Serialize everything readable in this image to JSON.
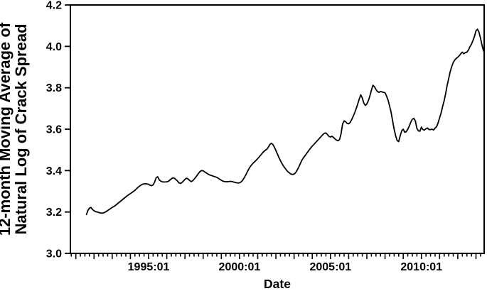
{
  "figure": {
    "background_color": "#ffffff",
    "axis_color": "#000000",
    "line_color": "#000000",
    "text_color": "#000000"
  },
  "chart_data": {
    "type": "line",
    "title": "",
    "xlabel": "Date",
    "ylabel": "12-month Moving Average of Natural Log of Crack Spread",
    "ylabel_lines": [
      "12-month Moving Average of",
      "Natural Log of Crack Spread"
    ],
    "grid": "off",
    "legend": "none",
    "x_axis": {
      "range_decimal_years": [
        1990.7,
        2013.45
      ],
      "major_tick_every_years": 1,
      "minor_tick_every_years": 0.25,
      "tick_labels": [
        {
          "year": 1995.0,
          "label": "1995:01"
        },
        {
          "year": 2000.0,
          "label": "2000:01"
        },
        {
          "year": 2005.0,
          "label": "2005:01"
        },
        {
          "year": 2010.0,
          "label": "2010:01"
        }
      ]
    },
    "y_axis": {
      "range": [
        3.0,
        4.2
      ],
      "ticks": [
        3.0,
        3.2,
        3.4,
        3.6,
        3.8,
        4.0,
        4.2
      ],
      "tick_labels": [
        "3.0",
        "3.2",
        "3.4",
        "3.6",
        "3.8",
        "4.0",
        "4.2"
      ]
    },
    "series": [
      {
        "name": "12-month moving average of natural log of crack spread",
        "start": "1991-08",
        "frequency": "monthly",
        "values": [
          3.188,
          3.208,
          3.219,
          3.222,
          3.212,
          3.206,
          3.202,
          3.2,
          3.198,
          3.196,
          3.194,
          3.195,
          3.198,
          3.202,
          3.207,
          3.212,
          3.217,
          3.222,
          3.226,
          3.231,
          3.237,
          3.243,
          3.249,
          3.255,
          3.261,
          3.267,
          3.273,
          3.279,
          3.284,
          3.289,
          3.294,
          3.299,
          3.305,
          3.312,
          3.319,
          3.325,
          3.33,
          3.334,
          3.336,
          3.337,
          3.335,
          3.334,
          3.329,
          3.327,
          3.331,
          3.345,
          3.366,
          3.37,
          3.356,
          3.349,
          3.346,
          3.345,
          3.345,
          3.346,
          3.348,
          3.354,
          3.36,
          3.365,
          3.363,
          3.357,
          3.35,
          3.341,
          3.338,
          3.342,
          3.35,
          3.358,
          3.363,
          3.36,
          3.353,
          3.347,
          3.35,
          3.358,
          3.367,
          3.377,
          3.387,
          3.396,
          3.4,
          3.399,
          3.394,
          3.389,
          3.384,
          3.38,
          3.377,
          3.375,
          3.372,
          3.37,
          3.367,
          3.363,
          3.358,
          3.353,
          3.349,
          3.347,
          3.346,
          3.346,
          3.347,
          3.348,
          3.347,
          3.345,
          3.343,
          3.341,
          3.34,
          3.341,
          3.345,
          3.353,
          3.364,
          3.377,
          3.392,
          3.406,
          3.418,
          3.428,
          3.436,
          3.443,
          3.45,
          3.458,
          3.466,
          3.475,
          3.484,
          3.492,
          3.498,
          3.503,
          3.513,
          3.526,
          3.532,
          3.526,
          3.513,
          3.497,
          3.48,
          3.463,
          3.448,
          3.434,
          3.422,
          3.412,
          3.402,
          3.394,
          3.388,
          3.383,
          3.381,
          3.383,
          3.39,
          3.402,
          3.416,
          3.432,
          3.448,
          3.46,
          3.47,
          3.48,
          3.49,
          3.5,
          3.51,
          3.518,
          3.526,
          3.534,
          3.542,
          3.55,
          3.558,
          3.566,
          3.574,
          3.58,
          3.582,
          3.574,
          3.565,
          3.562,
          3.566,
          3.56,
          3.553,
          3.547,
          3.544,
          3.55,
          3.578,
          3.625,
          3.64,
          3.636,
          3.628,
          3.626,
          3.633,
          3.646,
          3.662,
          3.68,
          3.7,
          3.722,
          3.746,
          3.766,
          3.75,
          3.726,
          3.715,
          3.722,
          3.738,
          3.76,
          3.788,
          3.812,
          3.805,
          3.792,
          3.782,
          3.778,
          3.782,
          3.78,
          3.778,
          3.776,
          3.76,
          3.74,
          3.712,
          3.682,
          3.64,
          3.6,
          3.568,
          3.545,
          3.54,
          3.568,
          3.592,
          3.6,
          3.585,
          3.588,
          3.6,
          3.615,
          3.634,
          3.648,
          3.652,
          3.64,
          3.604,
          3.592,
          3.59,
          3.61,
          3.598,
          3.596,
          3.602,
          3.606,
          3.598,
          3.598,
          3.6,
          3.596,
          3.605,
          3.612,
          3.63,
          3.655,
          3.678,
          3.71,
          3.737,
          3.772,
          3.812,
          3.845,
          3.878,
          3.902,
          3.922,
          3.934,
          3.942,
          3.948,
          3.955,
          3.965,
          3.972,
          3.964,
          3.97,
          3.972,
          3.982,
          3.998,
          4.01,
          4.028,
          4.048,
          4.075,
          4.083,
          4.068,
          4.04,
          4.005,
          3.978
        ]
      }
    ]
  }
}
